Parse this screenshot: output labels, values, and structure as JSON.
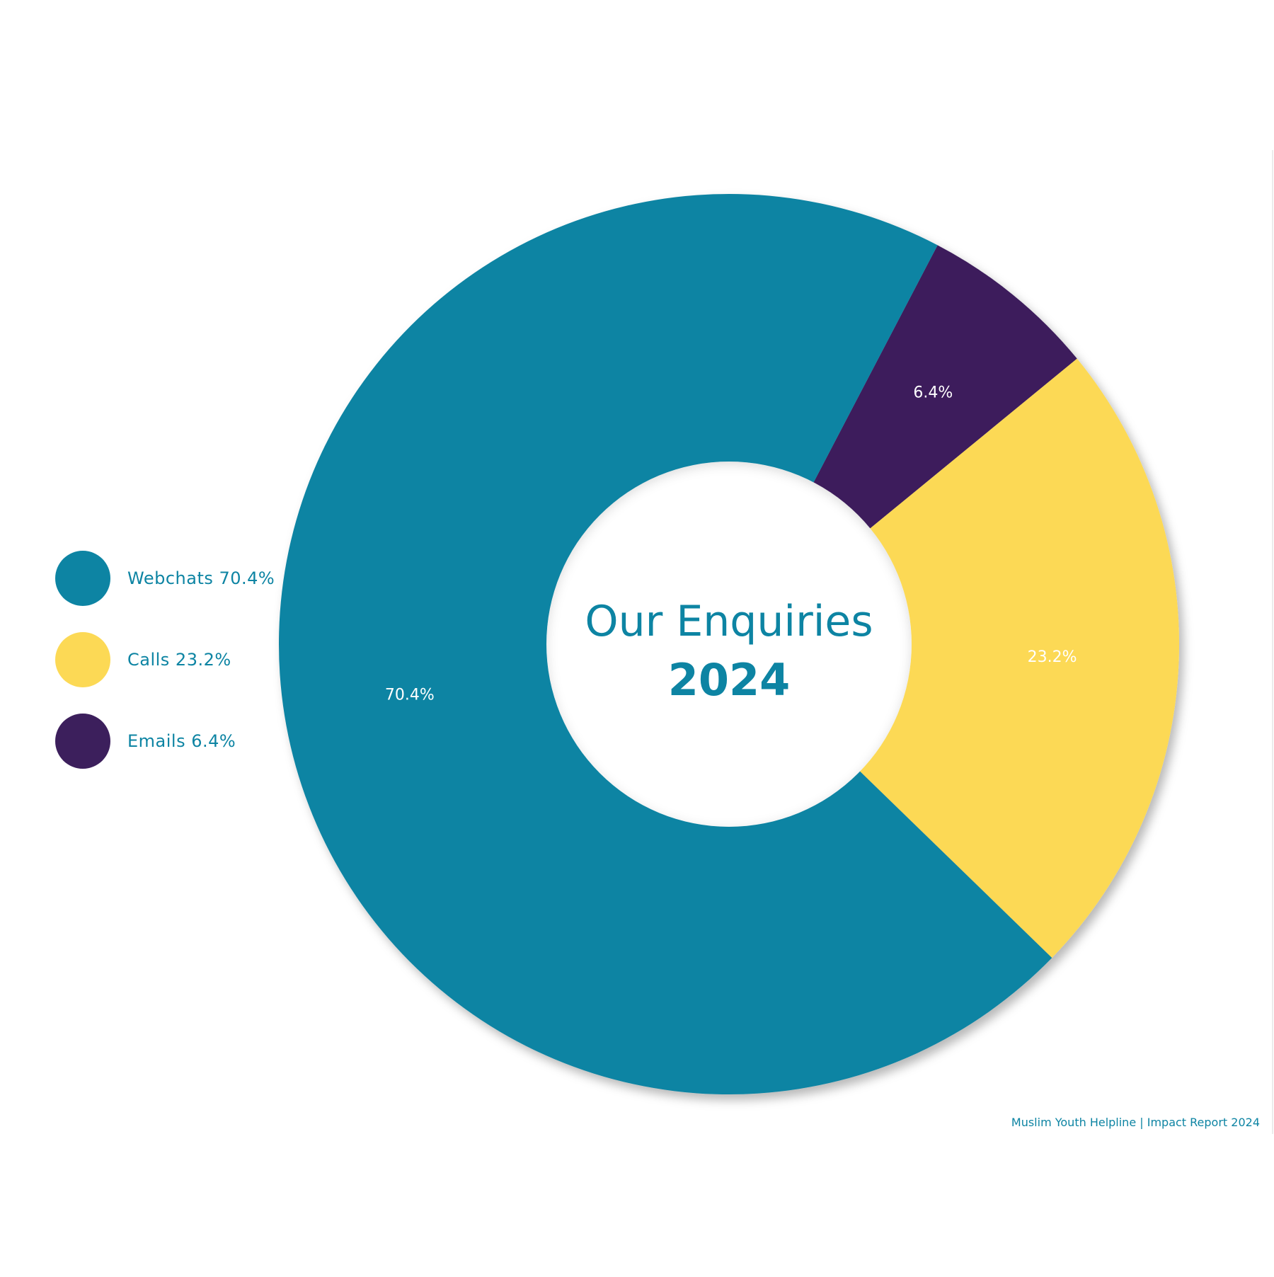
{
  "chart_data": {
    "type": "pie",
    "title": "Our Enquiries",
    "subtitle": "2024",
    "slices": [
      {
        "label": "Webchats",
        "value": 70.4,
        "value_label": "70.4%",
        "legend_text": "Webchats 70.4%",
        "color": "#0d84a3"
      },
      {
        "label": "Calls",
        "value": 23.2,
        "value_label": "23.2%",
        "legend_text": "Calls 23.2%",
        "color": "#fcd955"
      },
      {
        "label": "Emails",
        "value": 6.4,
        "value_label": "6.4%",
        "legend_text": "Emails 6.4%",
        "color": "#3c1f5c"
      }
    ],
    "legend_placement": "left",
    "donut": true
  },
  "colors": {
    "accent": "#0d84a3",
    "label_text": "#ffffff"
  },
  "footer": {
    "text": "Muslim Youth Helpline | Impact Report 2024"
  }
}
